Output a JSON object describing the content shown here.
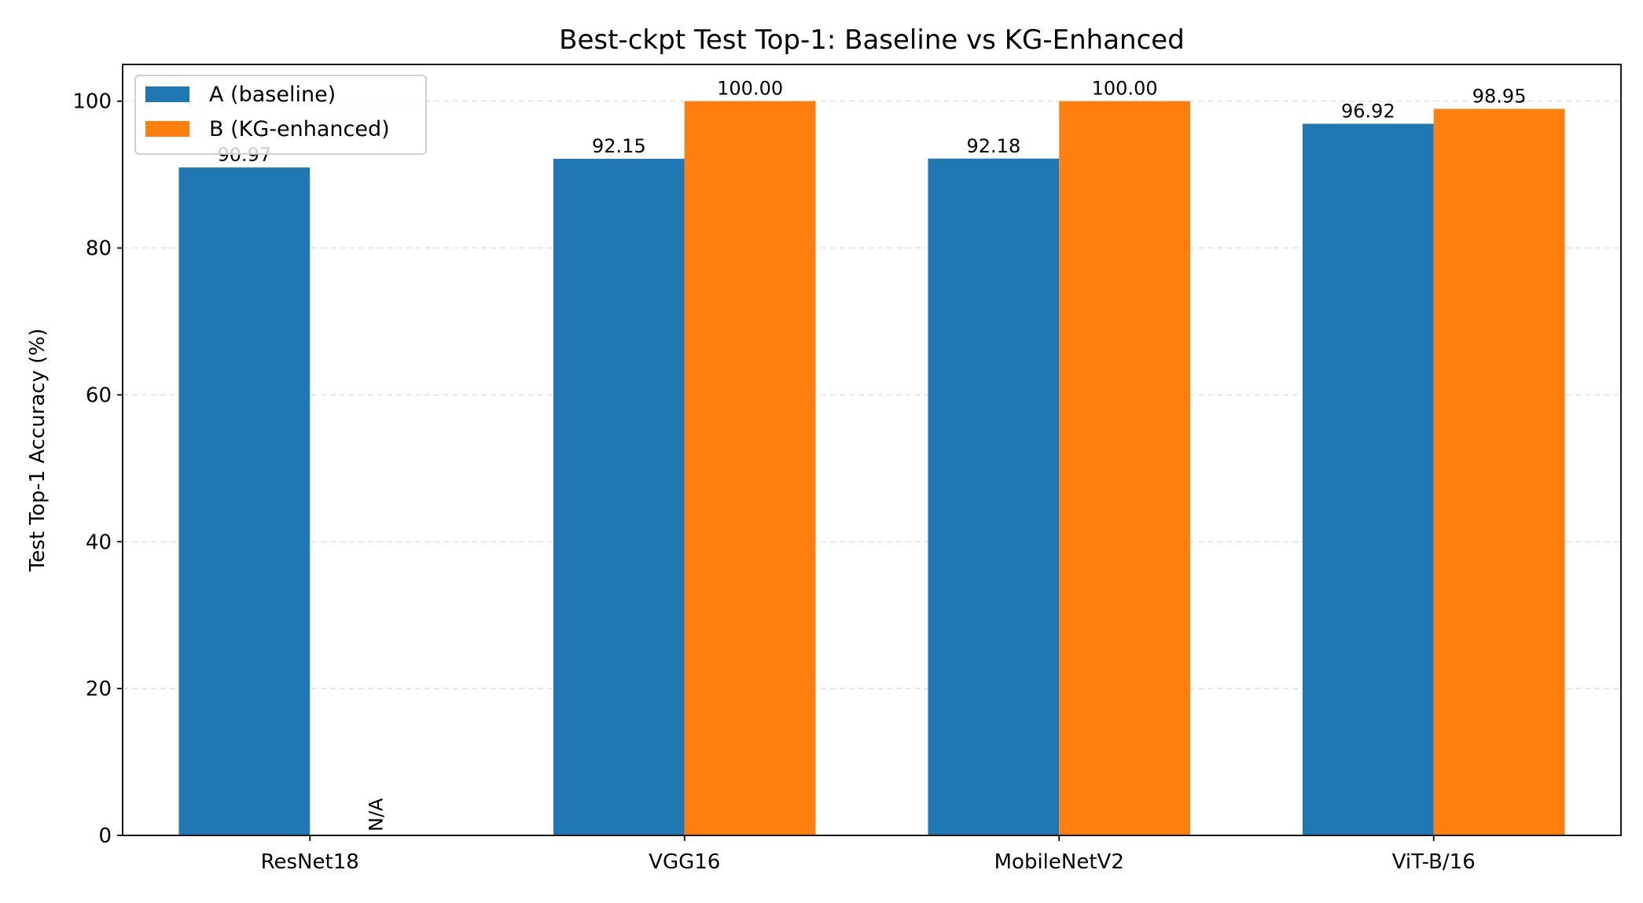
{
  "chart_data": {
    "type": "bar",
    "title": "Best-ckpt Test Top-1: Baseline vs KG-Enhanced",
    "xlabel": "",
    "ylabel": "Test Top-1 Accuracy (%)",
    "categories": [
      "ResNet18",
      "VGG16",
      "MobileNetV2",
      "ViT-B/16"
    ],
    "series": [
      {
        "name": "A (baseline)",
        "color": "#1f77b4",
        "values": [
          90.97,
          92.15,
          92.18,
          96.92
        ],
        "labels": [
          "90.97",
          "92.15",
          "92.18",
          "96.92"
        ]
      },
      {
        "name": "B (KG-enhanced)",
        "color": "#ff7f0e",
        "values": [
          null,
          100.0,
          100.0,
          98.95
        ],
        "labels": [
          "N/A",
          "100.00",
          "100.00",
          "98.95"
        ]
      }
    ],
    "ylim": [
      0,
      105
    ],
    "yticks": [
      0,
      20,
      40,
      60,
      80,
      100
    ],
    "grid": "y-dashed",
    "legend_position": "top-left"
  }
}
